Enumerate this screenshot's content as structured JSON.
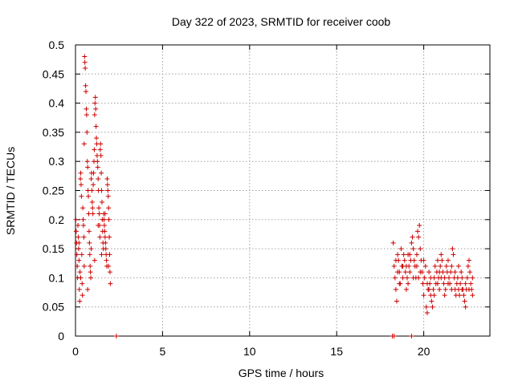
{
  "chart_data": {
    "type": "scatter",
    "title": "Day 322 of 2023, SRMTID for receiver coob",
    "xlabel": "GPS time / hours",
    "ylabel": "SRMTID / TECUs",
    "xlim": [
      0,
      23.8
    ],
    "ylim": [
      0,
      0.5
    ],
    "grid": true,
    "marker": "+",
    "colors": {
      "series": "#cc0000",
      "grid": "#a0a0a0",
      "axis": "#000000"
    },
    "x_ticks": [
      {
        "value": 0,
        "label": "0"
      },
      {
        "value": 5,
        "label": "5"
      },
      {
        "value": 10,
        "label": "10"
      },
      {
        "value": 15,
        "label": "15"
      },
      {
        "value": 20,
        "label": "20"
      }
    ],
    "y_ticks": [
      {
        "value": 0,
        "label": "0"
      },
      {
        "value": 0.05,
        "label": "0.05"
      },
      {
        "value": 0.1,
        "label": "0.1"
      },
      {
        "value": 0.15,
        "label": "0.15"
      },
      {
        "value": 0.2,
        "label": "0.2"
      },
      {
        "value": 0.25,
        "label": "0.25"
      },
      {
        "value": 0.3,
        "label": "0.3"
      },
      {
        "value": 0.35,
        "label": "0.35"
      },
      {
        "value": 0.4,
        "label": "0.4"
      },
      {
        "value": 0.45,
        "label": "0.45"
      },
      {
        "value": 0.5,
        "label": "0.5"
      }
    ],
    "series": [
      {
        "name": "SRMTID",
        "points": [
          [
            0.02,
            0.2
          ],
          [
            0.04,
            0.18
          ],
          [
            0.06,
            0.16
          ],
          [
            0.08,
            0.14
          ],
          [
            0.1,
            0.12
          ],
          [
            0.12,
            0.1
          ],
          [
            0.14,
            0.19
          ],
          [
            0.16,
            0.17
          ],
          [
            0.18,
            0.15
          ],
          [
            0.2,
            0.13
          ],
          [
            0.22,
            0.08
          ],
          [
            0.24,
            0.06
          ],
          [
            0.26,
            0.11
          ],
          [
            0.28,
            0.27
          ],
          [
            0.3,
            0.28
          ],
          [
            0.32,
            0.26
          ],
          [
            0.34,
            0.24
          ],
          [
            0.36,
            0.14
          ],
          [
            0.38,
            0.09
          ],
          [
            0.4,
            0.07
          ],
          [
            0.42,
            0.22
          ],
          [
            0.44,
            0.2
          ],
          [
            0.46,
            0.19
          ],
          [
            0.48,
            0.17
          ],
          [
            0.5,
            0.33
          ],
          [
            0.52,
            0.48
          ],
          [
            0.54,
            0.47
          ],
          [
            0.56,
            0.46
          ],
          [
            0.58,
            0.43
          ],
          [
            0.6,
            0.42
          ],
          [
            0.62,
            0.39
          ],
          [
            0.64,
            0.38
          ],
          [
            0.66,
            0.35
          ],
          [
            0.68,
            0.3
          ],
          [
            0.7,
            0.29
          ],
          [
            0.72,
            0.25
          ],
          [
            0.74,
            0.24
          ],
          [
            0.76,
            0.21
          ],
          [
            0.78,
            0.18
          ],
          [
            0.8,
            0.16
          ],
          [
            0.82,
            0.14
          ],
          [
            0.84,
            0.12
          ],
          [
            0.86,
            0.11
          ],
          [
            0.88,
            0.1
          ],
          [
            0.9,
            0.27
          ],
          [
            0.92,
            0.28
          ],
          [
            0.94,
            0.25
          ],
          [
            0.96,
            0.23
          ],
          [
            0.98,
            0.22
          ],
          [
            1.0,
            0.21
          ],
          [
            1.02,
            0.26
          ],
          [
            1.04,
            0.28
          ],
          [
            1.06,
            0.3
          ],
          [
            1.08,
            0.32
          ],
          [
            1.1,
            0.38
          ],
          [
            1.12,
            0.4
          ],
          [
            1.14,
            0.41
          ],
          [
            1.16,
            0.39
          ],
          [
            1.18,
            0.36
          ],
          [
            1.2,
            0.34
          ],
          [
            1.22,
            0.33
          ],
          [
            1.24,
            0.31
          ],
          [
            1.26,
            0.3
          ],
          [
            1.28,
            0.29
          ],
          [
            1.3,
            0.27
          ],
          [
            1.32,
            0.25
          ],
          [
            1.34,
            0.22
          ],
          [
            1.36,
            0.21
          ],
          [
            1.38,
            0.19
          ],
          [
            1.4,
            0.17
          ],
          [
            1.42,
            0.32
          ],
          [
            1.44,
            0.33
          ],
          [
            1.46,
            0.31
          ],
          [
            1.48,
            0.28
          ],
          [
            1.5,
            0.25
          ],
          [
            1.52,
            0.23
          ],
          [
            1.54,
            0.2
          ],
          [
            1.56,
            0.18
          ],
          [
            1.58,
            0.16
          ],
          [
            1.6,
            0.15
          ],
          [
            1.62,
            0.21
          ],
          [
            1.64,
            0.2
          ],
          [
            1.66,
            0.19
          ],
          [
            1.68,
            0.18
          ],
          [
            1.7,
            0.17
          ],
          [
            1.72,
            0.16
          ],
          [
            1.74,
            0.15
          ],
          [
            1.76,
            0.14
          ],
          [
            1.78,
            0.13
          ],
          [
            1.8,
            0.12
          ],
          [
            1.82,
            0.27
          ],
          [
            1.84,
            0.26
          ],
          [
            1.86,
            0.25
          ],
          [
            1.88,
            0.24
          ],
          [
            1.9,
            0.22
          ],
          [
            1.92,
            0.2
          ],
          [
            1.94,
            0.17
          ],
          [
            1.96,
            0.14
          ],
          [
            1.98,
            0.11
          ],
          [
            2.0,
            0.09
          ],
          [
            0.3,
            0.1
          ],
          [
            0.5,
            0.12
          ],
          [
            0.7,
            0.08
          ],
          [
            0.9,
            0.15
          ],
          [
            1.1,
            0.13
          ],
          [
            1.3,
            0.19
          ],
          [
            1.5,
            0.14
          ],
          [
            1.7,
            0.21
          ],
          [
            1.9,
            0.12
          ],
          [
            0.2,
            0.16
          ],
          [
            2.35,
            0.0
          ],
          [
            18.2,
            0.0
          ],
          [
            18.3,
            0.0
          ],
          [
            19.3,
            0.0
          ],
          [
            18.25,
            0.16
          ],
          [
            18.3,
            0.12
          ],
          [
            18.35,
            0.1
          ],
          [
            18.4,
            0.08
          ],
          [
            18.45,
            0.06
          ],
          [
            18.5,
            0.14
          ],
          [
            18.55,
            0.13
          ],
          [
            18.6,
            0.11
          ],
          [
            18.65,
            0.09
          ],
          [
            18.7,
            0.15
          ],
          [
            18.75,
            0.12
          ],
          [
            18.8,
            0.1
          ],
          [
            18.85,
            0.14
          ],
          [
            18.9,
            0.13
          ],
          [
            18.95,
            0.11
          ],
          [
            19.0,
            0.12
          ],
          [
            19.05,
            0.1
          ],
          [
            19.1,
            0.14
          ],
          [
            19.15,
            0.12
          ],
          [
            19.2,
            0.11
          ],
          [
            19.25,
            0.13
          ],
          [
            19.3,
            0.16
          ],
          [
            19.35,
            0.17
          ],
          [
            19.4,
            0.15
          ],
          [
            19.45,
            0.13
          ],
          [
            19.5,
            0.12
          ],
          [
            19.55,
            0.1
          ],
          [
            19.6,
            0.14
          ],
          [
            19.65,
            0.18
          ],
          [
            19.7,
            0.17
          ],
          [
            19.75,
            0.19
          ],
          [
            19.8,
            0.15
          ],
          [
            19.85,
            0.13
          ],
          [
            19.9,
            0.11
          ],
          [
            19.95,
            0.09
          ],
          [
            20.0,
            0.07
          ],
          [
            20.05,
            0.1
          ],
          [
            20.1,
            0.12
          ],
          [
            20.15,
            0.05
          ],
          [
            20.2,
            0.04
          ],
          [
            20.25,
            0.08
          ],
          [
            20.3,
            0.11
          ],
          [
            20.35,
            0.09
          ],
          [
            20.4,
            0.07
          ],
          [
            20.45,
            0.06
          ],
          [
            20.5,
            0.05
          ],
          [
            20.55,
            0.08
          ],
          [
            20.6,
            0.1
          ],
          [
            20.65,
            0.12
          ],
          [
            20.7,
            0.09
          ],
          [
            20.75,
            0.11
          ],
          [
            20.8,
            0.13
          ],
          [
            20.85,
            0.1
          ],
          [
            20.9,
            0.08
          ],
          [
            20.95,
            0.12
          ],
          [
            21.0,
            0.14
          ],
          [
            21.05,
            0.13
          ],
          [
            21.1,
            0.11
          ],
          [
            21.15,
            0.09
          ],
          [
            21.2,
            0.1
          ],
          [
            21.25,
            0.08
          ],
          [
            21.3,
            0.12
          ],
          [
            21.35,
            0.11
          ],
          [
            21.4,
            0.13
          ],
          [
            21.45,
            0.1
          ],
          [
            21.5,
            0.09
          ],
          [
            21.55,
            0.11
          ],
          [
            21.6,
            0.12
          ],
          [
            21.65,
            0.15
          ],
          [
            21.7,
            0.14
          ],
          [
            21.75,
            0.1
          ],
          [
            21.8,
            0.08
          ],
          [
            21.85,
            0.07
          ],
          [
            21.9,
            0.09
          ],
          [
            21.95,
            0.1
          ],
          [
            22.0,
            0.08
          ],
          [
            22.05,
            0.07
          ],
          [
            22.1,
            0.09
          ],
          [
            22.15,
            0.11
          ],
          [
            22.2,
            0.1
          ],
          [
            22.25,
            0.08
          ],
          [
            22.3,
            0.07
          ],
          [
            22.35,
            0.06
          ],
          [
            22.4,
            0.05
          ],
          [
            22.45,
            0.08
          ],
          [
            22.5,
            0.1
          ],
          [
            22.55,
            0.12
          ],
          [
            22.6,
            0.13
          ],
          [
            22.65,
            0.11
          ],
          [
            22.7,
            0.09
          ],
          [
            22.75,
            0.08
          ],
          [
            22.8,
            0.07
          ],
          [
            18.4,
            0.13
          ],
          [
            18.6,
            0.09
          ],
          [
            18.8,
            0.12
          ],
          [
            19.0,
            0.08
          ],
          [
            19.2,
            0.14
          ],
          [
            19.4,
            0.1
          ],
          [
            19.6,
            0.12
          ],
          [
            19.8,
            0.11
          ],
          [
            20.0,
            0.13
          ],
          [
            20.2,
            0.09
          ],
          [
            20.4,
            0.1
          ],
          [
            20.6,
            0.07
          ],
          [
            20.8,
            0.09
          ],
          [
            21.0,
            0.1
          ],
          [
            21.2,
            0.07
          ],
          [
            21.4,
            0.09
          ],
          [
            21.6,
            0.08
          ],
          [
            21.8,
            0.11
          ],
          [
            22.0,
            0.12
          ],
          [
            22.2,
            0.08
          ],
          [
            22.4,
            0.09
          ],
          [
            22.6,
            0.08
          ],
          [
            22.8,
            0.1
          ],
          [
            18.5,
            0.11
          ],
          [
            19.1,
            0.09
          ],
          [
            19.7,
            0.1
          ],
          [
            20.3,
            0.08
          ],
          [
            20.9,
            0.11
          ]
        ]
      }
    ]
  }
}
